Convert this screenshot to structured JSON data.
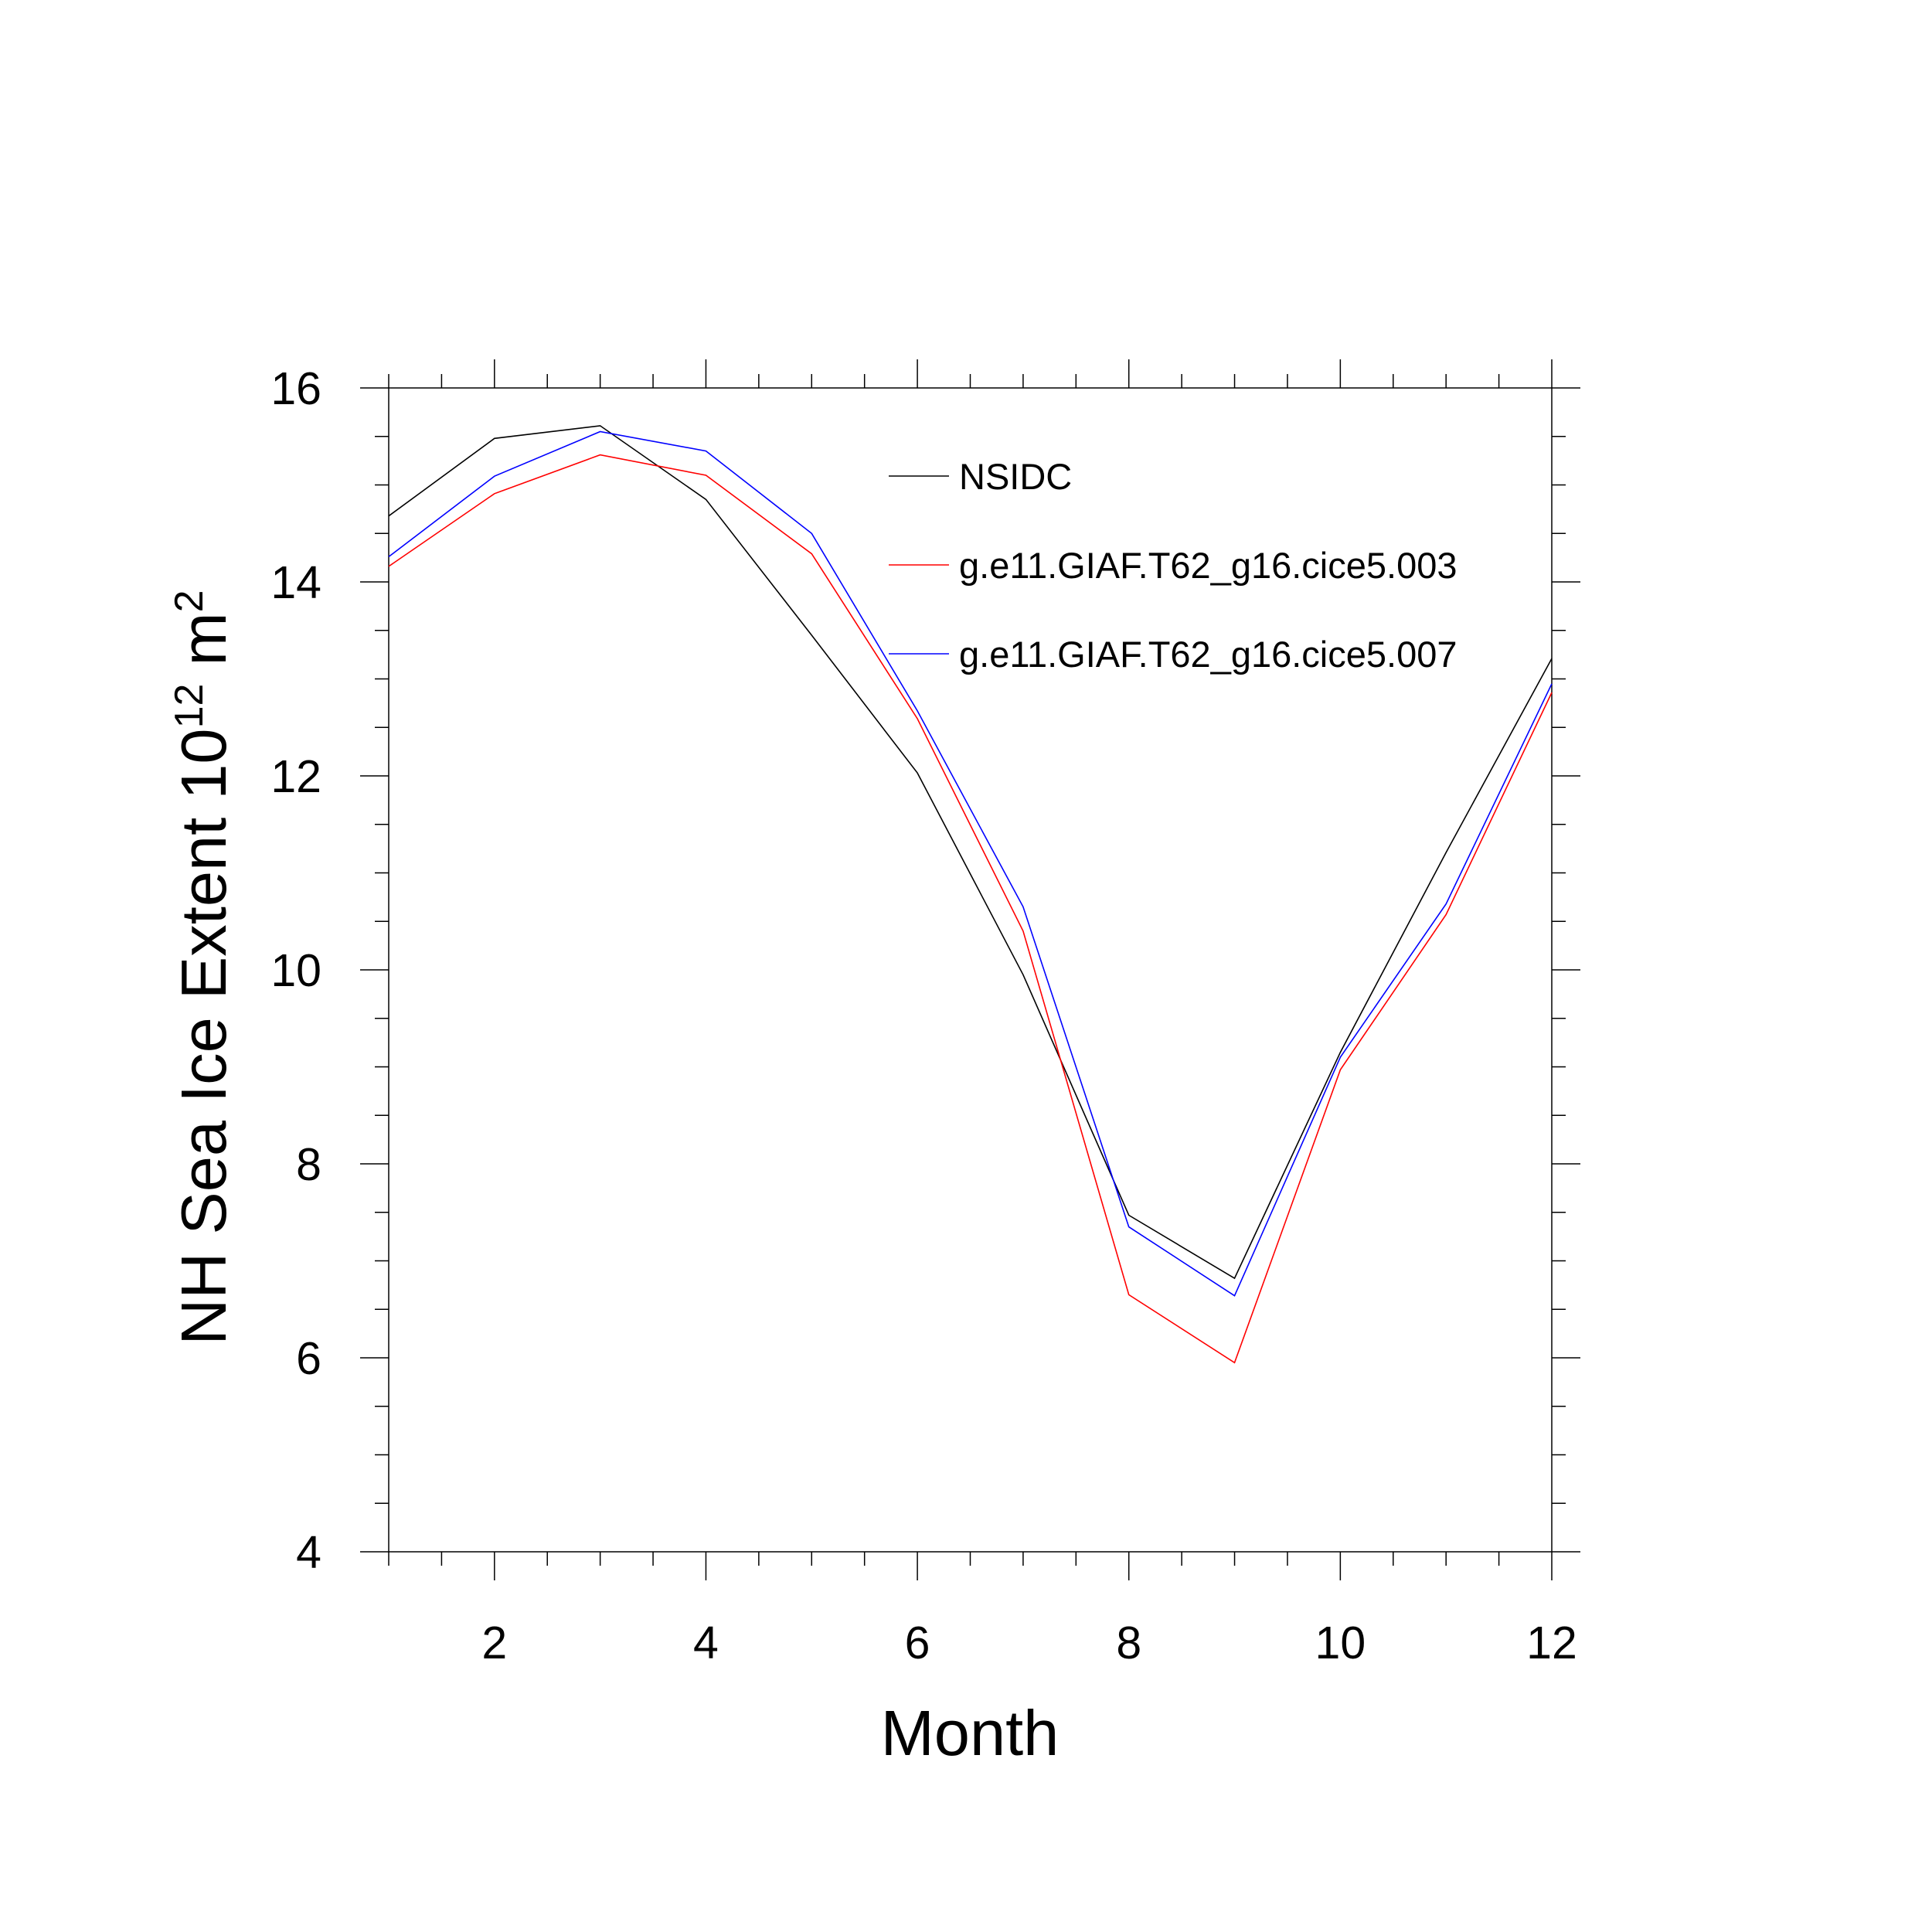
{
  "chart_data": {
    "type": "line",
    "xlabel": "Month",
    "ylabel_main": "NH Sea Ice Extent 10",
    "ylabel_exp1": "12",
    "ylabel_unit": " m",
    "ylabel_exp2": "2",
    "xlim": [
      1,
      12
    ],
    "ylim": [
      4,
      16
    ],
    "x_ticks": [
      "2",
      "4",
      "6",
      "8",
      "10",
      "12"
    ],
    "y_ticks": [
      "4",
      "6",
      "8",
      "10",
      "12",
      "14",
      "16"
    ],
    "x": [
      1,
      2,
      3,
      4,
      5,
      6,
      7,
      8,
      9,
      10,
      11,
      12
    ],
    "legend_position": "top-right",
    "series": [
      {
        "name": "NSIDC",
        "color": "#000000",
        "values": [
          14.68,
          15.48,
          15.61,
          14.85,
          13.45,
          12.03,
          9.95,
          7.47,
          6.82,
          9.15,
          11.21,
          13.21
        ]
      },
      {
        "name": "g.e11.GIAF.T62_g16.cice5.003",
        "color": "#ff0000",
        "values": [
          14.16,
          14.91,
          15.31,
          15.1,
          14.29,
          12.59,
          10.4,
          6.65,
          5.95,
          8.97,
          10.57,
          12.86
        ]
      },
      {
        "name": "g.e11.GIAF.T62_g16.cice5.007",
        "color": "#0000ff",
        "values": [
          14.26,
          15.09,
          15.55,
          15.35,
          14.5,
          12.67,
          10.65,
          7.35,
          6.64,
          9.1,
          10.68,
          12.95
        ]
      }
    ]
  }
}
